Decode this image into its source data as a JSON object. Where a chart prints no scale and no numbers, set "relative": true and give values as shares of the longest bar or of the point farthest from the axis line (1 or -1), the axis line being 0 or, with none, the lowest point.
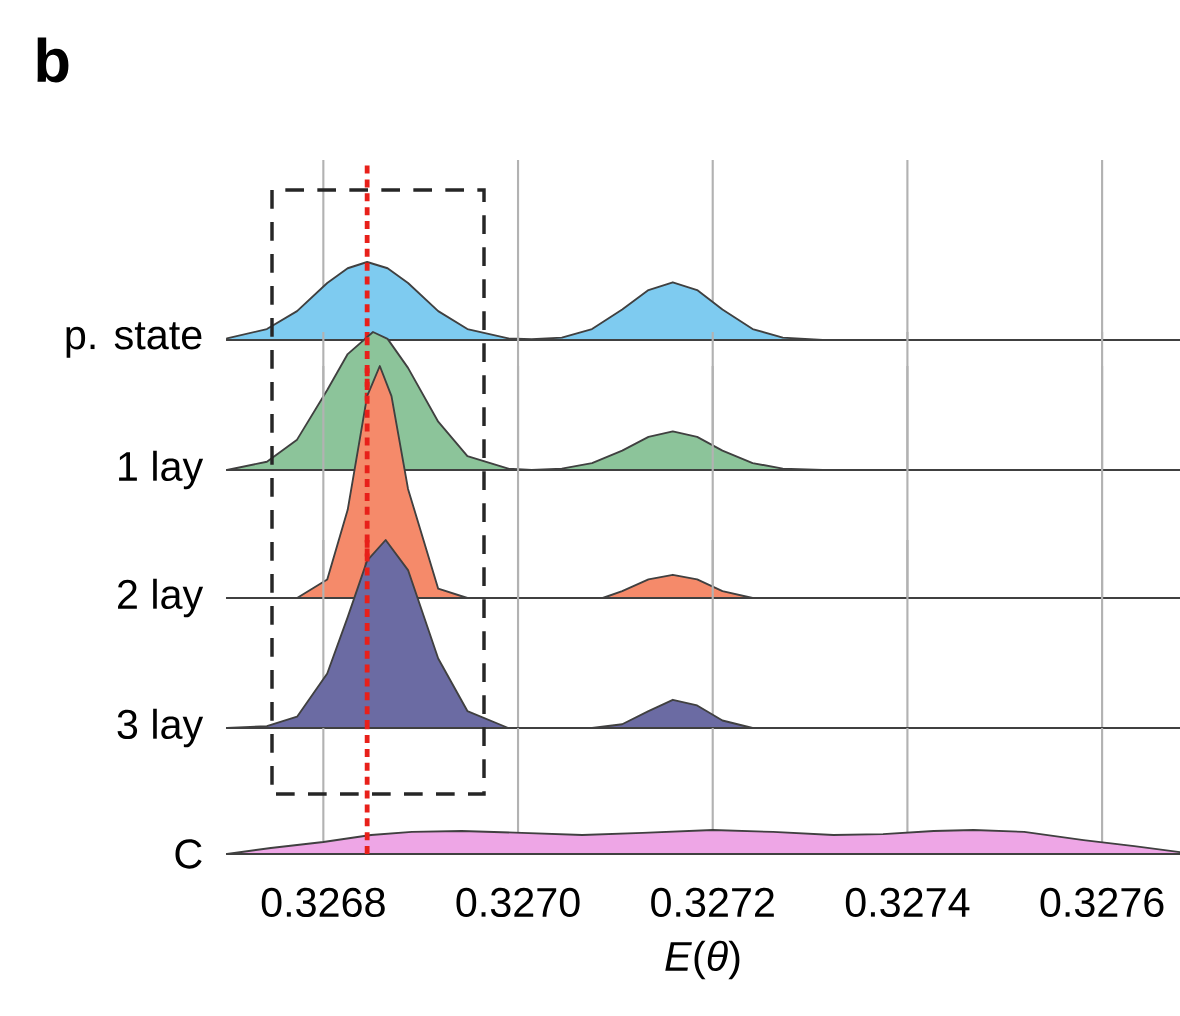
{
  "chart_data": [
    {
      "type": "area",
      "title": "b",
      "ylabel": "p. state",
      "relative": true,
      "color": "#7ecbf0",
      "grid": "x",
      "tick_labels": false,
      "xlim": [
        0.3267,
        0.32768
      ],
      "xticks": [
        0.3268,
        0.327,
        0.3272,
        0.3274,
        0.3276
      ],
      "x": [
        0.326701,
        0.326742,
        0.326773,
        0.326804,
        0.326825,
        0.326845,
        0.326866,
        0.326887,
        0.326918,
        0.326948,
        0.32699,
        0.327014,
        0.327045,
        0.327076,
        0.327107,
        0.327134,
        0.327159,
        0.327184,
        0.32721,
        0.327241,
        0.327272,
        0.327313,
        0.32768
      ],
      "values": [
        0.02,
        0.14,
        0.37,
        0.73,
        0.92,
        1,
        0.92,
        0.73,
        0.37,
        0.14,
        0.02,
        0.01,
        0.03,
        0.14,
        0.39,
        0.64,
        0.74,
        0.64,
        0.39,
        0.14,
        0.03,
        0,
        0
      ],
      "ref_lines": [
        {
          "axis": "x",
          "value": 0.326845,
          "color": "#e8201a",
          "line_style": "dotted"
        }
      ]
    },
    {
      "type": "area",
      "ylabel": "1 lay",
      "relative": true,
      "color": "#8cc49a",
      "grid": "x",
      "tick_labels": false,
      "xlim": [
        0.3267,
        0.32768
      ],
      "xticks": [
        0.3268,
        0.327,
        0.3272,
        0.3274,
        0.3276
      ],
      "x": [
        0.326701,
        0.326742,
        0.326773,
        0.326804,
        0.326825,
        0.326851,
        0.326866,
        0.326887,
        0.326918,
        0.326948,
        0.32699,
        0.327014,
        0.327045,
        0.327076,
        0.327107,
        0.327134,
        0.327159,
        0.327184,
        0.32721,
        0.327241,
        0.327272,
        0.327313,
        0.32768
      ],
      "values": [
        0,
        0.06,
        0.22,
        0.58,
        0.84,
        1,
        0.95,
        0.74,
        0.35,
        0.1,
        0.01,
        0,
        0.01,
        0.05,
        0.14,
        0.24,
        0.28,
        0.24,
        0.14,
        0.05,
        0.01,
        0,
        0
      ],
      "ref_lines": [
        {
          "axis": "x",
          "value": 0.326845,
          "color": "#e8201a",
          "line_style": "dotted"
        }
      ]
    },
    {
      "type": "area",
      "ylabel": "2 lay",
      "relative": true,
      "color": "#f58a6a",
      "grid": "x",
      "tick_labels": false,
      "xlim": [
        0.3267,
        0.32768
      ],
      "xticks": [
        0.3268,
        0.327,
        0.3272,
        0.3274,
        0.3276
      ],
      "x": [
        0.326701,
        0.326773,
        0.326804,
        0.326825,
        0.326845,
        0.326858,
        0.32687,
        0.326887,
        0.326918,
        0.326948,
        0.327087,
        0.327107,
        0.327134,
        0.327159,
        0.327184,
        0.32721,
        0.327241,
        0.327272,
        0.32768
      ],
      "values": [
        0,
        0,
        0.08,
        0.38,
        0.87,
        1,
        0.87,
        0.47,
        0.04,
        0,
        0,
        0.03,
        0.08,
        0.1,
        0.08,
        0.03,
        0,
        0,
        0
      ],
      "ref_lines": [
        {
          "axis": "x",
          "value": 0.326845,
          "color": "#e8201a",
          "line_style": "dotted"
        }
      ]
    },
    {
      "type": "area",
      "ylabel": "3 lay",
      "relative": true,
      "color": "#6b6ba3",
      "grid": "x",
      "tick_labels": false,
      "xlim": [
        0.3267,
        0.32768
      ],
      "xticks": [
        0.3268,
        0.327,
        0.3272,
        0.3274,
        0.3276
      ],
      "x": [
        0.326701,
        0.326742,
        0.326773,
        0.326804,
        0.326825,
        0.326845,
        0.326864,
        0.326887,
        0.326918,
        0.326948,
        0.32699,
        0.327045,
        0.327076,
        0.327107,
        0.327134,
        0.327159,
        0.327184,
        0.32721,
        0.327241,
        0.327272,
        0.32768
      ],
      "values": [
        0,
        0.01,
        0.06,
        0.29,
        0.59,
        0.89,
        1,
        0.84,
        0.37,
        0.09,
        0,
        0,
        0,
        0.02,
        0.09,
        0.15,
        0.12,
        0.04,
        0,
        0,
        0
      ],
      "ref_lines": [
        {
          "axis": "x",
          "value": 0.326845,
          "color": "#e8201a",
          "line_style": "dotted"
        }
      ]
    },
    {
      "type": "area",
      "ylabel": "C",
      "xlabel": "*E*(*θ*)",
      "relative": true,
      "color": "#eea6e6",
      "grid": "x",
      "xlim": [
        0.3267,
        0.32768
      ],
      "xticks": [
        0.3268,
        {
          "value": 0.327,
          "label": "0.3270"
        },
        0.3272,
        0.3274,
        0.3276
      ],
      "x": [
        0.326701,
        0.326746,
        0.3268,
        0.326849,
        0.326891,
        0.326942,
        0.327004,
        0.327066,
        0.327128,
        0.3272,
        0.327262,
        0.327324,
        0.327375,
        0.327427,
        0.327468,
        0.32752,
        0.327581,
        0.327633,
        0.32768
      ],
      "values": [
        0,
        0.25,
        0.5,
        0.79,
        0.92,
        0.96,
        0.88,
        0.79,
        0.88,
        1,
        0.92,
        0.79,
        0.83,
        0.96,
        1,
        0.92,
        0.58,
        0.33,
        0.08
      ],
      "ref_lines": [
        {
          "axis": "x",
          "value": 0.326845,
          "color": "#e8201a",
          "line_style": "dotted"
        }
      ]
    }
  ]
}
